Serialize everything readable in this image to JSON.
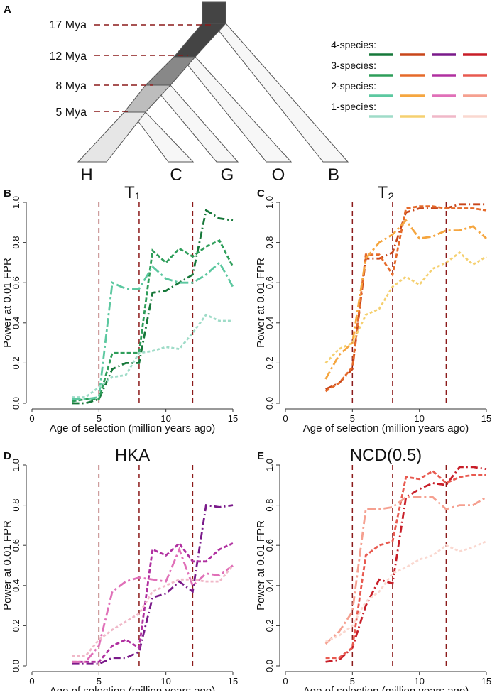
{
  "panel_a": {
    "letter": "A",
    "times": [
      "17 Mya",
      "12 Mya",
      "8 Mya",
      "5 Mya"
    ],
    "leaves": [
      "H",
      "C",
      "G",
      "O",
      "B"
    ]
  },
  "legend": [
    "4-species:",
    "3-species:",
    "2-species:",
    "1-species:"
  ],
  "chart_data": [
    {
      "type": "line",
      "letter": "B",
      "title": "T₁",
      "ylabel": "Power at 0.01 FPR",
      "xlabel": "Age of selection (million years ago)",
      "x": [
        3,
        4,
        5,
        6,
        7,
        8,
        9,
        10,
        11,
        12,
        13,
        14,
        15
      ],
      "xlim": [
        0,
        15
      ],
      "xticks": [
        0,
        5,
        10,
        15
      ],
      "ylim": [
        0,
        1
      ],
      "yticks": [
        {
          "value": 0,
          "label": "0.0"
        },
        {
          "value": 0.2,
          "label": "0.2"
        },
        {
          "value": 0.4,
          "label": "0.4"
        },
        {
          "value": 0.6,
          "label": "0.6"
        },
        {
          "value": 0.8,
          "label": "0.8"
        },
        {
          "value": 1,
          "label": "1.0"
        }
      ],
      "vlines": [
        5,
        8,
        12
      ],
      "vline_color": "#8b1a1a",
      "series": [
        {
          "color": "#17783a",
          "values": [
            0.0,
            0.0,
            0.02,
            0.17,
            0.2,
            0.2,
            0.55,
            0.56,
            0.6,
            0.64,
            0.96,
            0.92,
            0.91
          ]
        },
        {
          "color": "#2e9e5a",
          "values": [
            0.01,
            0.02,
            0.02,
            0.25,
            0.25,
            0.25,
            0.76,
            0.7,
            0.77,
            0.73,
            0.78,
            0.81,
            0.68
          ]
        },
        {
          "color": "#5cc8a0",
          "values": [
            0.02,
            0.02,
            0.03,
            0.6,
            0.57,
            0.57,
            0.68,
            0.62,
            0.6,
            0.6,
            0.64,
            0.7,
            0.58
          ]
        },
        {
          "color": "#9fdcc8",
          "values": [
            0.03,
            0.03,
            0.08,
            0.13,
            0.14,
            0.25,
            0.26,
            0.28,
            0.27,
            0.35,
            0.44,
            0.41,
            0.41
          ]
        }
      ]
    },
    {
      "type": "line",
      "letter": "C",
      "title": "T₂",
      "ylabel": "Power at 0.01 FPR",
      "xlabel": "Age of selection (million years ago)",
      "x": [
        3,
        4,
        5,
        6,
        7,
        8,
        9,
        10,
        11,
        12,
        13,
        14,
        15
      ],
      "xlim": [
        0,
        15
      ],
      "xticks": [
        0,
        5,
        10,
        15
      ],
      "ylim": [
        0,
        1
      ],
      "yticks": [
        {
          "value": 0,
          "label": "0.0"
        },
        {
          "value": 0.2,
          "label": "0.2"
        },
        {
          "value": 0.4,
          "label": "0.4"
        },
        {
          "value": 0.6,
          "label": "0.6"
        },
        {
          "value": 0.8,
          "label": "0.8"
        },
        {
          "value": 1,
          "label": "1.0"
        }
      ],
      "vlines": [
        5,
        8,
        12
      ],
      "vline_color": "#8b1a1a",
      "series": [
        {
          "color": "#c8461a",
          "values": [
            0.07,
            0.1,
            0.17,
            0.72,
            0.72,
            0.75,
            0.95,
            0.97,
            0.97,
            0.97,
            0.99,
            0.99,
            0.99
          ]
        },
        {
          "color": "#e56a2a",
          "values": [
            0.06,
            0.1,
            0.18,
            0.74,
            0.74,
            0.64,
            0.97,
            0.98,
            0.98,
            0.97,
            0.97,
            0.97,
            0.96
          ]
        },
        {
          "color": "#f5a640",
          "values": [
            0.12,
            0.24,
            0.3,
            0.72,
            0.8,
            0.84,
            0.91,
            0.82,
            0.83,
            0.86,
            0.86,
            0.88,
            0.82
          ]
        },
        {
          "color": "#f5d070",
          "values": [
            0.2,
            0.27,
            0.3,
            0.44,
            0.47,
            0.58,
            0.63,
            0.59,
            0.67,
            0.7,
            0.75,
            0.69,
            0.73
          ]
        }
      ]
    },
    {
      "type": "line",
      "letter": "D",
      "title": "HKA",
      "ylabel": "Power at 0.01 FPR",
      "xlabel": "Age of selection (million years ago)",
      "x": [
        3,
        4,
        5,
        6,
        7,
        8,
        9,
        10,
        11,
        12,
        13,
        14,
        15
      ],
      "xlim": [
        0,
        15
      ],
      "xticks": [
        0,
        5,
        10,
        15
      ],
      "ylim": [
        0,
        1
      ],
      "yticks": [
        {
          "value": 0,
          "label": "0.0"
        },
        {
          "value": 0.2,
          "label": "0.2"
        },
        {
          "value": 0.4,
          "label": "0.4"
        },
        {
          "value": 0.6,
          "label": "0.6"
        },
        {
          "value": 0.8,
          "label": "0.8"
        },
        {
          "value": 1,
          "label": "1.0"
        }
      ],
      "vlines": [
        5,
        8,
        12
      ],
      "vline_color": "#8b1a1a",
      "series": [
        {
          "color": "#7a1a8a",
          "values": [
            0.01,
            0.01,
            0.01,
            0.04,
            0.04,
            0.07,
            0.34,
            0.36,
            0.42,
            0.37,
            0.8,
            0.79,
            0.8
          ]
        },
        {
          "color": "#b030a0",
          "values": [
            0.02,
            0.02,
            0.02,
            0.1,
            0.13,
            0.09,
            0.58,
            0.55,
            0.61,
            0.52,
            0.52,
            0.58,
            0.61
          ]
        },
        {
          "color": "#e070b8",
          "values": [
            0.02,
            0.02,
            0.1,
            0.37,
            0.42,
            0.44,
            0.43,
            0.42,
            0.58,
            0.4,
            0.46,
            0.45,
            0.5
          ]
        },
        {
          "color": "#f0b8c8",
          "values": [
            0.05,
            0.05,
            0.13,
            0.18,
            0.22,
            0.26,
            0.37,
            0.4,
            0.43,
            0.43,
            0.42,
            0.42,
            0.5
          ]
        }
      ]
    },
    {
      "type": "line",
      "letter": "E",
      "title": "NCD(0.5)",
      "ylabel": "Power at 0.01 FPR",
      "xlabel": "Age of selection (million years ago)",
      "x": [
        3,
        4,
        5,
        6,
        7,
        8,
        9,
        10,
        11,
        12,
        13,
        14,
        15
      ],
      "xlim": [
        0,
        15
      ],
      "xticks": [
        0,
        5,
        10,
        15
      ],
      "ylim": [
        0,
        1
      ],
      "yticks": [
        {
          "value": 0,
          "label": "0.0"
        },
        {
          "value": 0.2,
          "label": "0.2"
        },
        {
          "value": 0.4,
          "label": "0.4"
        },
        {
          "value": 0.6,
          "label": "0.6"
        },
        {
          "value": 0.8,
          "label": "0.8"
        },
        {
          "value": 1,
          "label": "1.0"
        }
      ],
      "vlines": [
        5,
        8,
        12
      ],
      "vline_color": "#8b1a1a",
      "series": [
        {
          "color": "#c81e28",
          "values": [
            0.02,
            0.03,
            0.09,
            0.3,
            0.43,
            0.41,
            0.84,
            0.88,
            0.91,
            0.9,
            0.99,
            0.99,
            0.98
          ]
        },
        {
          "color": "#e85a50",
          "values": [
            0.04,
            0.04,
            0.09,
            0.55,
            0.6,
            0.62,
            0.94,
            0.93,
            0.97,
            0.91,
            0.94,
            0.95,
            0.95
          ]
        },
        {
          "color": "#f5a090",
          "values": [
            0.11,
            0.17,
            0.27,
            0.78,
            0.78,
            0.79,
            0.84,
            0.84,
            0.84,
            0.78,
            0.8,
            0.8,
            0.84
          ]
        },
        {
          "color": "#fad8d0",
          "values": [
            0.12,
            0.15,
            0.2,
            0.32,
            0.37,
            0.46,
            0.49,
            0.53,
            0.55,
            0.6,
            0.57,
            0.59,
            0.62
          ]
        }
      ]
    }
  ]
}
